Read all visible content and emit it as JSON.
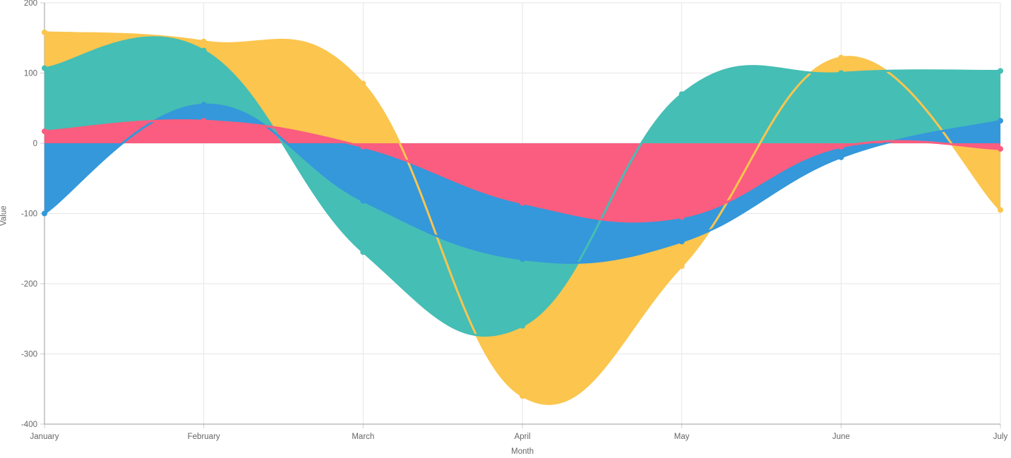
{
  "chart_data": {
    "type": "area",
    "xlabel": "Month",
    "ylabel": "Value",
    "categories": [
      "January",
      "February",
      "March",
      "April",
      "May",
      "June",
      "July"
    ],
    "series": [
      {
        "name": "yellow-series",
        "color": "#FBC54E",
        "values": [
          158,
          145,
          85,
          -360,
          -175,
          122,
          -95
        ]
      },
      {
        "name": "teal-series",
        "color": "#45BEB5",
        "values": [
          107,
          132,
          -155,
          -260,
          70,
          100,
          103
        ]
      },
      {
        "name": "blue-series",
        "color": "#3498DB",
        "values": [
          -100,
          55,
          -82,
          -165,
          -140,
          -20,
          32
        ]
      },
      {
        "name": "pink-series",
        "color": "#FA5D7F",
        "values": [
          17,
          32,
          -5,
          -85,
          -105,
          -5,
          -8
        ]
      }
    ],
    "ylim": [
      -400,
      200
    ],
    "y_ticks": [
      200,
      100,
      0,
      -100,
      -200,
      -300,
      -400
    ],
    "grid": true,
    "legend": false,
    "fill_to": "origin",
    "style": {
      "grid_color": "#e6e6e6",
      "axis_line_color": "#9b9b9b",
      "tick_color": "#cfcfcf",
      "label_color": "#666666",
      "background": "#ffffff"
    }
  }
}
